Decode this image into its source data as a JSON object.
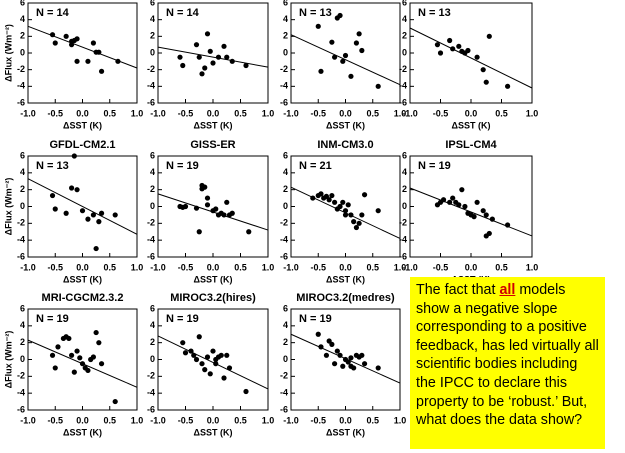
{
  "chart_data": [
    {
      "type": "scatter",
      "annotation": "N = 14",
      "x_label": "ΔSST (K)",
      "y_label": "ΔFlux (Wm⁻²)",
      "color": "#000000",
      "xlim": [
        -1,
        1
      ],
      "ylim": [
        -6,
        6
      ],
      "xticks": [
        {
          "value": -1,
          "label": "-1.0"
        },
        -0.5,
        {
          "value": 0,
          "label": "0.0"
        },
        0.5,
        {
          "value": 1,
          "label": "1.0"
        }
      ],
      "yticks": [
        -6,
        -4,
        -2,
        0,
        2,
        4,
        6
      ],
      "x": [
        -0.55,
        -0.5,
        -0.3,
        -0.2,
        -0.15,
        -0.1,
        -0.1,
        0.1,
        0.2,
        0.25,
        0.3,
        0.35,
        0.65,
        -0.2
      ],
      "y": [
        2.2,
        1.2,
        2,
        1,
        1.5,
        1.7,
        -1,
        -1,
        1.2,
        0.1,
        0.1,
        -2.2,
        -1,
        1.4
      ],
      "trend_line": {
        "x": [
          -1,
          1
        ],
        "y": [
          3.2,
          -1.8
        ]
      }
    },
    {
      "type": "scatter",
      "annotation": "N = 14",
      "x_label": "ΔSST (K)",
      "color": "#000000",
      "xlim": [
        -1,
        1
      ],
      "ylim": [
        -6,
        6
      ],
      "xticks": [
        {
          "value": -1,
          "label": "-1.0"
        },
        -0.5,
        {
          "value": 0,
          "label": "0.0"
        },
        0.5,
        {
          "value": 1,
          "label": "1.0"
        }
      ],
      "yticks": [
        -6,
        -4,
        -2,
        0,
        2,
        4,
        6
      ],
      "x": [
        -0.6,
        -0.55,
        -0.3,
        -0.25,
        -0.2,
        -0.15,
        -0.1,
        0,
        0.1,
        0.2,
        0.25,
        0.35,
        0.6,
        -0.05
      ],
      "y": [
        -0.5,
        -1.5,
        1,
        -0.5,
        -2.5,
        -1.8,
        2.3,
        -1.2,
        -0.5,
        0.8,
        -0.5,
        -1,
        -1.5,
        0.2
      ],
      "trend_line": {
        "x": [
          -1,
          1
        ],
        "y": [
          0.7,
          -1.7
        ]
      }
    },
    {
      "type": "scatter",
      "annotation": "N = 13",
      "x_label": "ΔSST (K)",
      "color": "#000000",
      "xlim": [
        -1,
        1
      ],
      "ylim": [
        -6,
        6
      ],
      "xticks": [
        {
          "value": -1,
          "label": "-1.0"
        },
        -0.5,
        {
          "value": 0,
          "label": "0.0"
        },
        0.5,
        {
          "value": 1,
          "label": "1.0"
        }
      ],
      "yticks": [
        -6,
        -4,
        -2,
        0,
        2,
        4,
        6
      ],
      "x": [
        -0.5,
        -0.45,
        -0.25,
        -0.2,
        -0.1,
        -0.05,
        0,
        0.1,
        0.2,
        0.25,
        0.3,
        0.6,
        -0.15
      ],
      "y": [
        3.2,
        -2.2,
        1.3,
        -0.5,
        4.5,
        -1,
        -0.3,
        -2.8,
        1.2,
        2.3,
        0.3,
        -4,
        4.2
      ],
      "trend_line": {
        "x": [
          -1,
          1
        ],
        "y": [
          2.2,
          -3.8
        ]
      }
    },
    {
      "type": "scatter",
      "annotation": "N = 13",
      "x_label": "ΔSST (K)",
      "color": "#000000",
      "xlim": [
        -1,
        1
      ],
      "ylim": [
        -6,
        6
      ],
      "xticks": [
        {
          "value": -1,
          "label": "-1.0"
        },
        -0.5,
        {
          "value": 0,
          "label": "0.0"
        },
        0.5,
        {
          "value": 1,
          "label": "1.0"
        }
      ],
      "yticks": [
        -6,
        -4,
        -2,
        0,
        2,
        4,
        6
      ],
      "x": [
        -0.55,
        -0.5,
        -0.35,
        -0.3,
        -0.2,
        -0.15,
        -0.1,
        -0.05,
        0.1,
        0.2,
        0.25,
        0.3,
        0.6
      ],
      "y": [
        1,
        0,
        1.5,
        0.5,
        0.8,
        0.2,
        0,
        0.3,
        -0.5,
        -2,
        -3.5,
        2,
        -4
      ],
      "trend_line": {
        "x": [
          -1,
          1
        ],
        "y": [
          3,
          -4.2
        ]
      }
    },
    {
      "type": "scatter",
      "title": "GFDL-CM2.1",
      "annotation": "N = 13",
      "x_label": "ΔSST (K)",
      "y_label": "ΔFlux (Wm⁻²)",
      "color": "#000000",
      "xlim": [
        -1,
        1
      ],
      "ylim": [
        -6,
        6
      ],
      "xticks": [
        {
          "value": -1,
          "label": "-1.0"
        },
        -0.5,
        {
          "value": 0,
          "label": "0.0"
        },
        0.5,
        {
          "value": 1,
          "label": "1.0"
        }
      ],
      "yticks": [
        -6,
        -4,
        -2,
        0,
        2,
        4,
        6
      ],
      "x": [
        -0.55,
        -0.5,
        -0.3,
        -0.2,
        -0.1,
        -0.15,
        0,
        0.1,
        0.2,
        0.25,
        0.3,
        0.35,
        0.6
      ],
      "y": [
        1.3,
        -0.3,
        -0.8,
        2.2,
        2,
        6,
        -0.5,
        -1.5,
        -1,
        -5,
        -1.8,
        -0.8,
        -1
      ],
      "trend_line": {
        "x": [
          -1,
          1
        ],
        "y": [
          3.3,
          -3.3
        ]
      }
    },
    {
      "type": "scatter",
      "title": "GISS-ER",
      "annotation": "N = 19",
      "x_label": "ΔSST (K)",
      "color": "#000000",
      "xlim": [
        -1,
        1
      ],
      "ylim": [
        -6,
        6
      ],
      "xticks": [
        {
          "value": -1,
          "label": "-1.0"
        },
        -0.5,
        {
          "value": 0,
          "label": "0.0"
        },
        0.5,
        {
          "value": 1,
          "label": "1.0"
        }
      ],
      "yticks": [
        -6,
        -4,
        -2,
        0,
        2,
        4,
        6
      ],
      "x": [
        -0.6,
        -0.55,
        -0.5,
        -0.3,
        -0.25,
        -0.2,
        -0.2,
        -0.15,
        -0.1,
        -0.1,
        0,
        0.05,
        0.1,
        0.15,
        0.2,
        0.25,
        0.3,
        0.35,
        0.65
      ],
      "y": [
        0,
        -0.1,
        0,
        -0.2,
        -3,
        2.5,
        2.1,
        2.3,
        1,
        0.2,
        -0.5,
        -0.3,
        -1,
        -0.8,
        -1,
        0.5,
        -1,
        -0.8,
        -3
      ],
      "trend_line": {
        "x": [
          -1,
          1
        ],
        "y": [
          1.5,
          -2.8
        ]
      }
    },
    {
      "type": "scatter",
      "title": "INM-CM3.0",
      "annotation": "N = 21",
      "x_label": "ΔSST (K)",
      "color": "#000000",
      "xlim": [
        -1,
        1
      ],
      "ylim": [
        -6,
        6
      ],
      "xticks": [
        {
          "value": -1,
          "label": "-1.0"
        },
        -0.5,
        {
          "value": 0,
          "label": "0.0"
        },
        0.5,
        {
          "value": 1,
          "label": "1.0"
        }
      ],
      "yticks": [
        -6,
        -4,
        -2,
        0,
        2,
        4,
        6
      ],
      "x": [
        -0.6,
        -0.5,
        -0.45,
        -0.4,
        -0.3,
        -0.25,
        -0.2,
        -0.15,
        -0.1,
        -0.05,
        0,
        0,
        0.05,
        0.1,
        0.15,
        0.2,
        0.25,
        0.3,
        0.35,
        0.6,
        -0.35
      ],
      "y": [
        1,
        1.3,
        1.5,
        1,
        0.8,
        1.3,
        0.5,
        -0.3,
        0,
        0.5,
        -0.5,
        -1,
        0.2,
        -1,
        -1.8,
        -2.5,
        -2,
        -1,
        1.4,
        -0.5,
        1.2
      ],
      "trend_line": {
        "x": [
          -1,
          1
        ],
        "y": [
          2.3,
          -3.8
        ]
      }
    },
    {
      "type": "scatter",
      "title": "IPSL-CM4",
      "annotation": "N = 19",
      "x_label": "ΔSST (K)",
      "color": "#000000",
      "xlim": [
        -1,
        1
      ],
      "ylim": [
        -6,
        6
      ],
      "xticks": [
        {
          "value": -1,
          "label": "-1.0"
        },
        -0.5,
        {
          "value": 0,
          "label": "0.0"
        },
        0.5,
        {
          "value": 1,
          "label": "1.0"
        }
      ],
      "yticks": [
        -6,
        -4,
        -2,
        0,
        2,
        4,
        6
      ],
      "x": [
        -0.55,
        -0.5,
        -0.45,
        -0.35,
        -0.3,
        -0.25,
        -0.2,
        -0.15,
        -0.1,
        -0.05,
        0,
        0.05,
        0.1,
        0.2,
        0.25,
        0.25,
        0.3,
        0.35,
        0.6
      ],
      "y": [
        0.2,
        0.5,
        0.8,
        0.5,
        1,
        0.5,
        0.2,
        2,
        0,
        -0.8,
        -1,
        -1.2,
        0.5,
        -0.5,
        -1,
        -3.5,
        -3.2,
        -1.5,
        -2.2
      ],
      "trend_line": {
        "x": [
          -1,
          1
        ],
        "y": [
          2.2,
          -3.5
        ]
      }
    },
    {
      "type": "scatter",
      "title": "MRI-CGCM2.3.2",
      "annotation": "N = 19",
      "x_label": "ΔSST (K)",
      "y_label": "ΔFlux (Wm⁻²)",
      "color": "#000000",
      "xlim": [
        -1,
        1
      ],
      "ylim": [
        -6,
        6
      ],
      "xticks": [
        {
          "value": -1,
          "label": "-1.0"
        },
        -0.5,
        {
          "value": 0,
          "label": "0.0"
        },
        0.5,
        {
          "value": 1,
          "label": "1.0"
        }
      ],
      "yticks": [
        -6,
        -4,
        -2,
        0,
        2,
        4,
        6
      ],
      "x": [
        -0.55,
        -0.5,
        -0.35,
        -0.3,
        -0.25,
        -0.2,
        -0.15,
        -0.1,
        -0.05,
        0,
        0.05,
        0.1,
        0.15,
        0.2,
        0.25,
        0.3,
        0.35,
        0.6,
        -0.45
      ],
      "y": [
        0.5,
        -1,
        2.5,
        2.7,
        2.5,
        0.5,
        -1.5,
        1,
        0.2,
        -0.5,
        -1,
        -1.3,
        0,
        0.3,
        3.2,
        2,
        -0.5,
        -5,
        1.5
      ],
      "trend_line": {
        "x": [
          -1,
          1
        ],
        "y": [
          2.3,
          -3.3
        ]
      }
    },
    {
      "type": "scatter",
      "title": "MIROC3.2(hires)",
      "annotation": "N = 19",
      "x_label": "ΔSST (K)",
      "color": "#000000",
      "xlim": [
        -1,
        1
      ],
      "ylim": [
        -6,
        6
      ],
      "xticks": [
        {
          "value": -1,
          "label": "-1.0"
        },
        -0.5,
        {
          "value": 0,
          "label": "0.0"
        },
        0.5,
        {
          "value": 1,
          "label": "1.0"
        }
      ],
      "yticks": [
        -6,
        -4,
        -2,
        0,
        2,
        4,
        6
      ],
      "x": [
        -0.55,
        -0.5,
        -0.35,
        -0.3,
        -0.2,
        -0.15,
        -0.1,
        -0.05,
        0,
        0.05,
        0.1,
        0.15,
        0.2,
        0.25,
        0.3,
        0.6,
        -0.25,
        0.05,
        -0.4
      ],
      "y": [
        2,
        0.8,
        0.5,
        0,
        -0.5,
        -1.2,
        0.3,
        -1.7,
        1,
        -0.5,
        0.3,
        0.5,
        -2.2,
        0.5,
        -1,
        -3.8,
        2.7,
        0,
        1
      ],
      "trend_line": {
        "x": [
          -1,
          1
        ],
        "y": [
          2.8,
          -3.5
        ]
      }
    },
    {
      "type": "scatter",
      "title": "MIROC3.2(medres)",
      "annotation": "N = 19",
      "x_label": "ΔSST (K)",
      "color": "#000000",
      "xlim": [
        -1,
        1
      ],
      "ylim": [
        -6,
        6
      ],
      "xticks": [
        {
          "value": -1,
          "label": "-1.0"
        },
        -0.5,
        {
          "value": 0,
          "label": "0.0"
        },
        0.5,
        {
          "value": 1,
          "label": "1.0"
        }
      ],
      "yticks": [
        -6,
        -4,
        -2,
        0,
        2,
        4,
        6
      ],
      "x": [
        -0.5,
        -0.45,
        -0.35,
        -0.3,
        -0.2,
        -0.15,
        -0.1,
        -0.05,
        0,
        0.05,
        0.1,
        0.15,
        0.2,
        0.25,
        0.3,
        0.35,
        0.6,
        -0.25,
        0.1
      ],
      "y": [
        3,
        1.5,
        0.5,
        2.2,
        -0.5,
        1,
        0.5,
        -0.8,
        0,
        -0.3,
        0.2,
        -1,
        0.5,
        0.3,
        0.5,
        -0.5,
        -1,
        1.8,
        -0.8
      ],
      "trend_line": {
        "x": [
          -1,
          1
        ],
        "y": [
          3,
          -2.8
        ]
      }
    }
  ],
  "note": {
    "before": "The fact that ",
    "emphasis": "all",
    "after": " models show a negative slope corresponding to a positive feedback, has led virtually all scientific bodies including the IPCC to declare this property to be ‘robust.’  But, what does the data show?"
  }
}
